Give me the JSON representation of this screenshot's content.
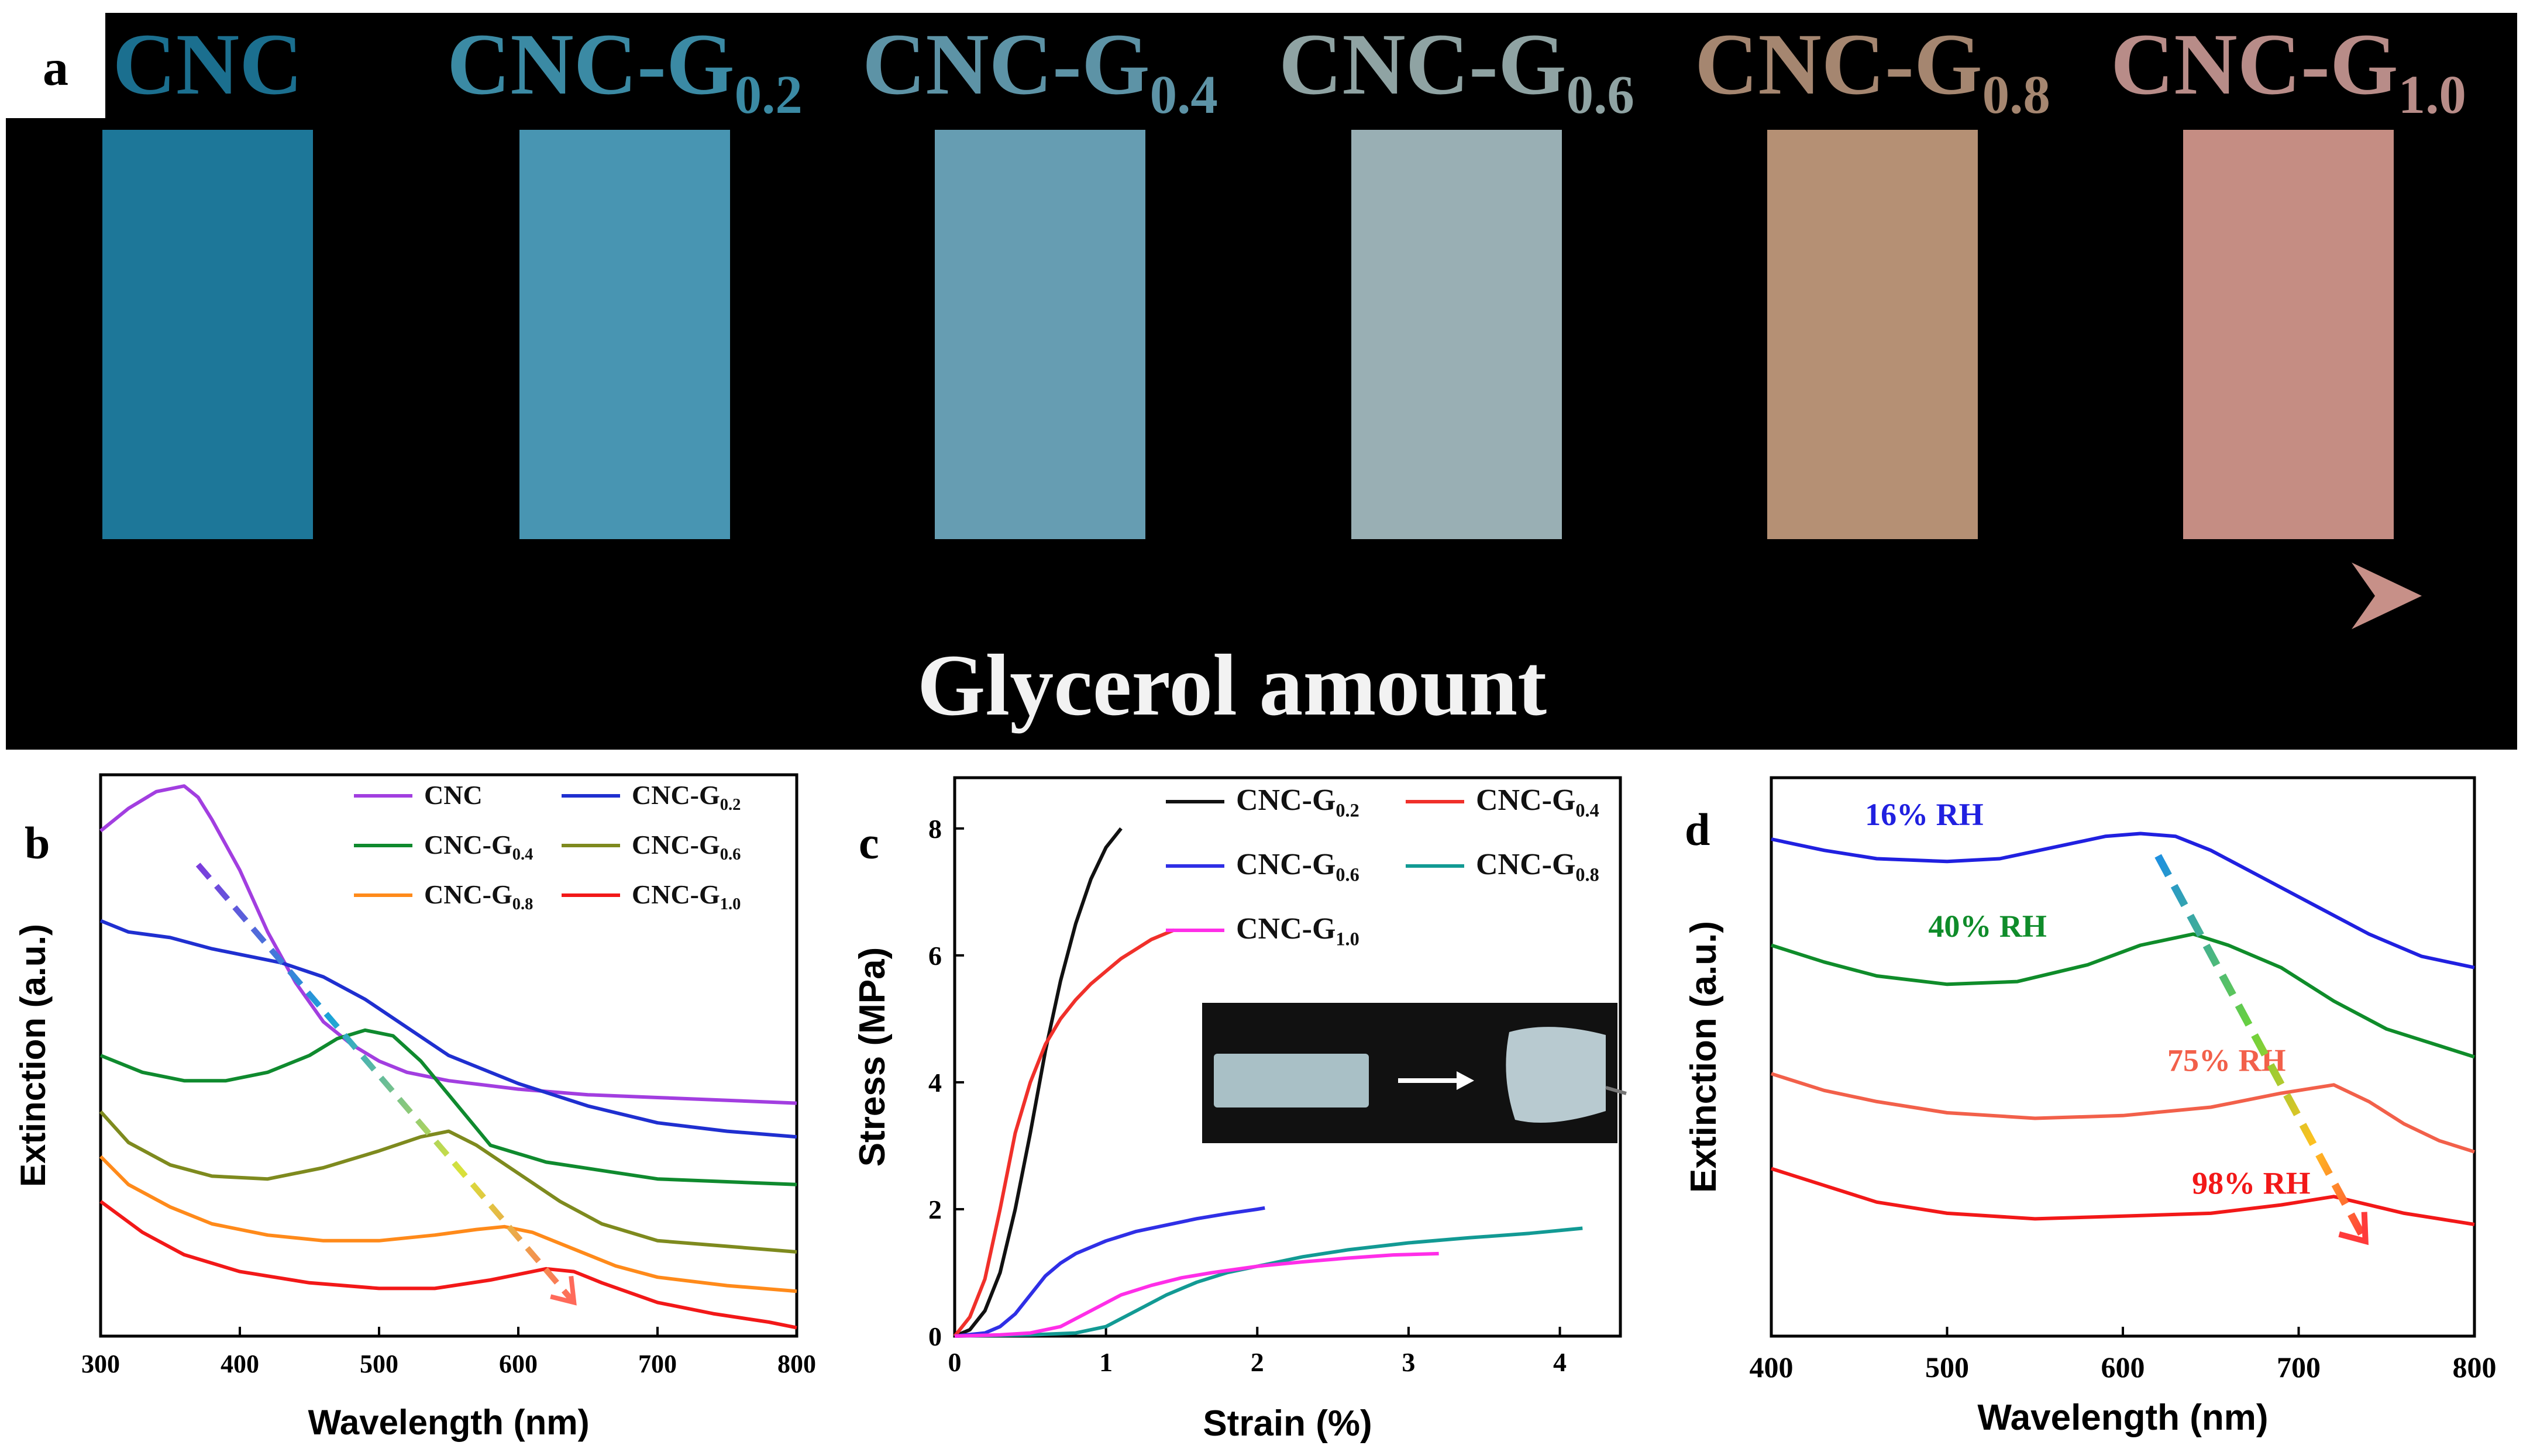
{
  "colors": {
    "CNC": "#a23ee0",
    "CNC-G0.2": "#1f2fd0",
    "CNC-G0.4": "#0f8a2e",
    "CNC-G0.6": "#7e8a1e",
    "CNC-G0.8": "#ff8a1a",
    "CNC-G1.0": "#f21818",
    "c_G02": "#111111",
    "c_G04": "#f0302a",
    "c_G06": "#2f2fe6",
    "c_G08": "#129a94",
    "c_G10": "#ff2ee8",
    "d_16": "#2020e0",
    "d_40": "#0f8c2a",
    "d_75": "#f2604a",
    "d_98": "#f21818"
  },
  "panel_a": {
    "label": "a",
    "samples": [
      {
        "name": "CNC",
        "sub": "",
        "film_color": "#0f6f93",
        "text_color": "#1b6f8f"
      },
      {
        "name": "CNC-G",
        "sub": "0.2",
        "film_color": "#3d8fae",
        "text_color": "#3b8aa4"
      },
      {
        "name": "CNC-G",
        "sub": "0.4",
        "film_color": "#5d97ae",
        "text_color": "#5d93a6"
      },
      {
        "name": "CNC-G",
        "sub": "0.6",
        "film_color": "#93abb0",
        "text_color": "#8fa3a3"
      },
      {
        "name": "CNC-G",
        "sub": "0.8",
        "film_color": "#b18a6c",
        "text_color": "#a58670"
      },
      {
        "name": "CNC-G",
        "sub": "1.0",
        "film_color": "#c2867c",
        "text_color": "#b88c88"
      }
    ],
    "arrow_label": "Glycerol amount"
  },
  "chart_data": [
    {
      "id": "b",
      "panel_label": "b",
      "type": "line",
      "xlabel": "Wavelength (nm)",
      "ylabel": "Extinction (a.u.)",
      "xlim": [
        300,
        800
      ],
      "ylim": [
        0,
        1
      ],
      "xticks": [
        "300",
        "400",
        "500",
        "600",
        "700",
        "800"
      ],
      "series": [
        {
          "name": "CNC",
          "sub": "",
          "key": "CNC",
          "x": [
            300,
            320,
            340,
            360,
            370,
            380,
            400,
            420,
            440,
            460,
            480,
            500,
            520,
            550,
            600,
            650,
            700,
            750,
            800
          ],
          "y": [
            0.9,
            0.94,
            0.97,
            0.98,
            0.96,
            0.92,
            0.83,
            0.72,
            0.63,
            0.56,
            0.52,
            0.49,
            0.47,
            0.455,
            0.44,
            0.43,
            0.425,
            0.42,
            0.415
          ]
        },
        {
          "name": "CNC-G",
          "sub": "0.2",
          "key": "CNC-G0.2",
          "x": [
            300,
            320,
            350,
            380,
            400,
            430,
            460,
            490,
            520,
            550,
            600,
            650,
            700,
            750,
            800
          ],
          "y": [
            0.74,
            0.72,
            0.71,
            0.69,
            0.68,
            0.665,
            0.64,
            0.6,
            0.55,
            0.5,
            0.45,
            0.41,
            0.38,
            0.365,
            0.355
          ]
        },
        {
          "name": "CNC-G",
          "sub": "0.4",
          "key": "CNC-G0.4",
          "x": [
            300,
            330,
            360,
            390,
            420,
            450,
            470,
            490,
            510,
            530,
            550,
            580,
            620,
            660,
            700,
            750,
            800
          ],
          "y": [
            0.5,
            0.47,
            0.455,
            0.455,
            0.47,
            0.5,
            0.53,
            0.545,
            0.535,
            0.49,
            0.43,
            0.34,
            0.31,
            0.295,
            0.28,
            0.275,
            0.27
          ]
        },
        {
          "name": "CNC-G",
          "sub": "0.6",
          "key": "CNC-G0.6",
          "x": [
            300,
            320,
            350,
            380,
            420,
            460,
            500,
            530,
            550,
            570,
            600,
            630,
            660,
            700,
            750,
            800
          ],
          "y": [
            0.4,
            0.345,
            0.305,
            0.285,
            0.28,
            0.3,
            0.33,
            0.355,
            0.365,
            0.34,
            0.29,
            0.24,
            0.2,
            0.17,
            0.16,
            0.15
          ]
        },
        {
          "name": "CNC-G",
          "sub": "0.8",
          "key": "CNC-G0.8",
          "x": [
            300,
            320,
            350,
            380,
            420,
            460,
            500,
            540,
            570,
            590,
            610,
            640,
            670,
            700,
            750,
            800
          ],
          "y": [
            0.32,
            0.27,
            0.23,
            0.2,
            0.18,
            0.17,
            0.17,
            0.18,
            0.19,
            0.195,
            0.185,
            0.155,
            0.125,
            0.105,
            0.09,
            0.08
          ]
        },
        {
          "name": "CNC-G",
          "sub": "1.0",
          "key": "CNC-G1.0",
          "x": [
            300,
            330,
            360,
            400,
            450,
            500,
            540,
            580,
            600,
            620,
            640,
            660,
            700,
            740,
            780,
            800
          ],
          "y": [
            0.24,
            0.185,
            0.145,
            0.115,
            0.095,
            0.085,
            0.085,
            0.1,
            0.11,
            0.12,
            0.115,
            0.095,
            0.06,
            0.04,
            0.025,
            0.015
          ]
        }
      ],
      "arrow": {
        "from": [
          370,
          0.84
        ],
        "to": [
          640,
          0.06
        ]
      }
    },
    {
      "id": "c",
      "panel_label": "c",
      "type": "line",
      "xlabel": "Strain (%)",
      "ylabel": "Stress (MPa)",
      "xlim": [
        0,
        4.4
      ],
      "ylim": [
        0,
        8.8
      ],
      "xticks": [
        0,
        1,
        2,
        3,
        4
      ],
      "yticks": [
        0,
        2,
        4,
        6,
        8
      ],
      "series": [
        {
          "name": "CNC-G",
          "sub": "0.2",
          "key": "c_G02",
          "x": [
            0,
            0.1,
            0.2,
            0.3,
            0.4,
            0.5,
            0.6,
            0.7,
            0.8,
            0.9,
            1.0,
            1.1
          ],
          "y": [
            0,
            0.1,
            0.4,
            1.0,
            2.0,
            3.2,
            4.5,
            5.6,
            6.5,
            7.2,
            7.7,
            8.0
          ]
        },
        {
          "name": "CNC-G",
          "sub": "0.4",
          "key": "c_G04",
          "x": [
            0,
            0.1,
            0.2,
            0.3,
            0.4,
            0.5,
            0.6,
            0.7,
            0.8,
            0.9,
            1.0,
            1.1,
            1.2,
            1.3,
            1.4,
            1.45
          ],
          "y": [
            0,
            0.3,
            0.9,
            2.0,
            3.2,
            4.0,
            4.6,
            5.0,
            5.3,
            5.55,
            5.75,
            5.95,
            6.1,
            6.25,
            6.35,
            6.4
          ]
        },
        {
          "name": "CNC-G",
          "sub": "0.6",
          "key": "c_G06",
          "x": [
            0,
            0.2,
            0.3,
            0.4,
            0.5,
            0.6,
            0.7,
            0.8,
            1.0,
            1.2,
            1.4,
            1.6,
            1.8,
            2.0,
            2.05
          ],
          "y": [
            0,
            0.05,
            0.15,
            0.35,
            0.65,
            0.95,
            1.15,
            1.3,
            1.5,
            1.65,
            1.75,
            1.85,
            1.93,
            2.0,
            2.02
          ]
        },
        {
          "name": "CNC-G",
          "sub": "0.8",
          "key": "c_G08",
          "x": [
            0,
            0.5,
            0.8,
            1.0,
            1.2,
            1.4,
            1.6,
            1.8,
            2.0,
            2.3,
            2.6,
            3.0,
            3.4,
            3.8,
            4.15
          ],
          "y": [
            0,
            0.02,
            0.05,
            0.15,
            0.4,
            0.65,
            0.85,
            1.0,
            1.1,
            1.25,
            1.36,
            1.47,
            1.55,
            1.62,
            1.7
          ]
        },
        {
          "name": "CNC-G",
          "sub": "1.0",
          "key": "c_G10",
          "x": [
            0,
            0.3,
            0.5,
            0.7,
            0.9,
            1.1,
            1.3,
            1.5,
            1.7,
            2.0,
            2.3,
            2.6,
            2.9,
            3.2
          ],
          "y": [
            0,
            0.02,
            0.05,
            0.15,
            0.4,
            0.65,
            0.8,
            0.92,
            1.0,
            1.1,
            1.17,
            1.23,
            1.28,
            1.3
          ]
        }
      ]
    },
    {
      "id": "d",
      "panel_label": "d",
      "type": "line",
      "xlabel": "Wavelength (nm)",
      "ylabel": "Extinction (a.u.)",
      "xlim": [
        400,
        800
      ],
      "ylim": [
        0,
        1
      ],
      "xticks": [
        400,
        500,
        600,
        700,
        800
      ],
      "series": [
        {
          "name": "16% RH",
          "key": "d_16",
          "x": [
            400,
            430,
            460,
            500,
            530,
            560,
            590,
            610,
            630,
            650,
            680,
            710,
            740,
            770,
            800
          ],
          "y": [
            0.89,
            0.87,
            0.855,
            0.85,
            0.855,
            0.875,
            0.895,
            0.9,
            0.895,
            0.87,
            0.82,
            0.77,
            0.72,
            0.68,
            0.66
          ]
        },
        {
          "name": "40% RH",
          "key": "d_40",
          "x": [
            400,
            430,
            460,
            500,
            540,
            580,
            610,
            640,
            660,
            690,
            720,
            750,
            780,
            800
          ],
          "y": [
            0.7,
            0.67,
            0.645,
            0.63,
            0.635,
            0.665,
            0.7,
            0.72,
            0.7,
            0.66,
            0.6,
            0.55,
            0.52,
            0.5
          ]
        },
        {
          "name": "75% RH",
          "key": "d_75",
          "x": [
            400,
            430,
            460,
            500,
            550,
            600,
            650,
            690,
            720,
            740,
            760,
            780,
            800
          ],
          "y": [
            0.47,
            0.44,
            0.42,
            0.4,
            0.39,
            0.395,
            0.41,
            0.435,
            0.45,
            0.42,
            0.38,
            0.35,
            0.33
          ]
        },
        {
          "name": "98% RH",
          "key": "d_98",
          "x": [
            400,
            430,
            460,
            500,
            550,
            600,
            650,
            690,
            720,
            740,
            760,
            780,
            800
          ],
          "y": [
            0.3,
            0.27,
            0.24,
            0.22,
            0.21,
            0.215,
            0.22,
            0.235,
            0.25,
            0.235,
            0.22,
            0.21,
            0.2
          ]
        }
      ],
      "labels": [
        {
          "text": "16% RH",
          "key": "d_16",
          "x": 487,
          "y": 0.915
        },
        {
          "text": "40% RH",
          "key": "d_40",
          "x": 523,
          "y": 0.715
        },
        {
          "text": "75% RH",
          "key": "d_75",
          "x": 659,
          "y": 0.475
        },
        {
          "text": "98% RH",
          "key": "d_98",
          "x": 673,
          "y": 0.255
        }
      ],
      "arrow": {
        "from": [
          620,
          0.86
        ],
        "to": [
          738,
          0.17
        ]
      }
    }
  ]
}
